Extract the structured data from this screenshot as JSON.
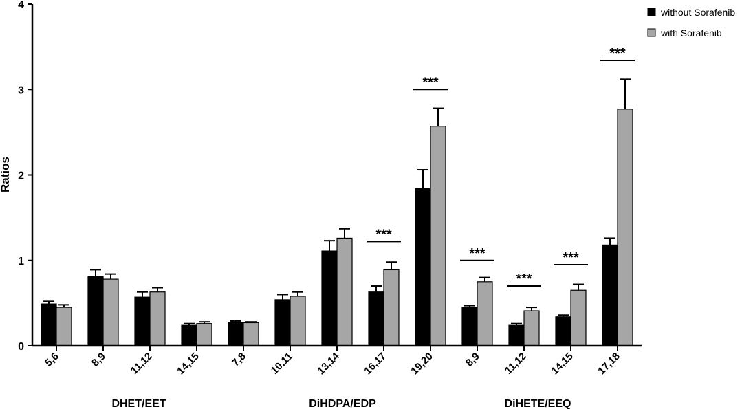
{
  "chart_data": {
    "type": "bar",
    "ylabel": "Ratios",
    "ylim": [
      0,
      4
    ],
    "yticks": [
      "0",
      "1",
      "2",
      "3",
      "4"
    ],
    "categories": [
      "5,6",
      "8,9",
      "11,12",
      "14,15",
      "7,8",
      "10,11",
      "13,14",
      "16,17",
      "19,20",
      "8,9",
      "11,12",
      "14,15",
      "17,18"
    ],
    "groups": [
      {
        "label": "DHET/EET",
        "start": 0,
        "end": 4
      },
      {
        "label": "DiHDPA/EDP",
        "start": 5,
        "end": 8
      },
      {
        "label": "DiHETE/EEQ",
        "start": 9,
        "end": 12
      }
    ],
    "series": [
      {
        "name": "without Sorafenib",
        "color": "#000000",
        "values": [
          0.49,
          0.81,
          0.57,
          0.24,
          0.27,
          0.54,
          1.11,
          0.63,
          1.84,
          0.45,
          0.24,
          0.34,
          1.18
        ],
        "errors": [
          0.03,
          0.08,
          0.06,
          0.02,
          0.02,
          0.06,
          0.12,
          0.07,
          0.22,
          0.02,
          0.02,
          0.02,
          0.08
        ]
      },
      {
        "name": "with Sorafenib",
        "color": "#a6a6a6",
        "values": [
          0.45,
          0.78,
          0.63,
          0.26,
          0.27,
          0.58,
          1.26,
          0.89,
          2.57,
          0.75,
          0.41,
          0.65,
          2.77
        ],
        "errors": [
          0.03,
          0.06,
          0.05,
          0.02,
          0.01,
          0.05,
          0.11,
          0.09,
          0.21,
          0.05,
          0.04,
          0.07,
          0.35
        ]
      }
    ],
    "significance": [
      {
        "category": 7,
        "label": "***",
        "y": 1.22
      },
      {
        "category": 8,
        "label": "***",
        "y": 3.0
      },
      {
        "category": 9,
        "label": "***",
        "y": 1.0
      },
      {
        "category": 10,
        "label": "***",
        "y": 0.7
      },
      {
        "category": 11,
        "label": "***",
        "y": 0.95
      },
      {
        "category": 12,
        "label": "***",
        "y": 3.34
      }
    ],
    "legend_position": "top-right"
  }
}
